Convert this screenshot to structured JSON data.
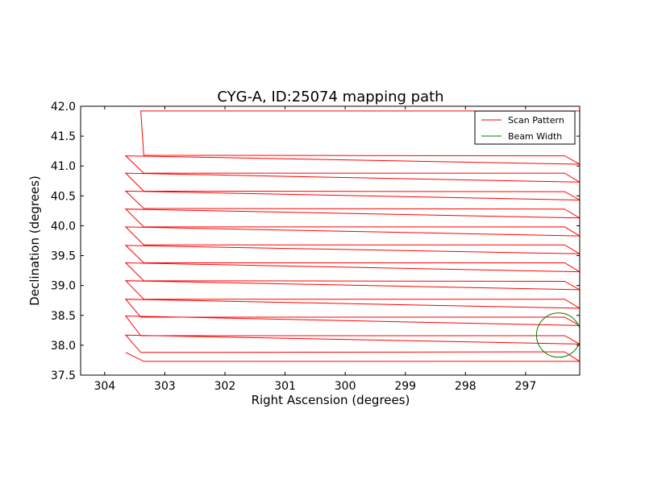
{
  "chart_data": {
    "type": "line",
    "title": "CYG-A, ID:25074 mapping path",
    "xlabel": "Right Ascension (degrees)",
    "ylabel": "Declination (degrees)",
    "xlim": [
      304.4,
      296.1
    ],
    "ylim": [
      37.5,
      42.0
    ],
    "x_ticks": [
      304,
      303,
      302,
      301,
      300,
      299,
      298,
      297
    ],
    "x_tick_labels": [
      "304",
      "303",
      "302",
      "301",
      "300",
      "299",
      "298",
      "297"
    ],
    "y_ticks": [
      37.5,
      38.0,
      38.5,
      39.0,
      39.5,
      40.0,
      40.5,
      41.0,
      41.5,
      42.0
    ],
    "y_tick_labels": [
      "37.5",
      "38.0",
      "38.5",
      "39.0",
      "39.5",
      "40.0",
      "40.5",
      "41.0",
      "41.5",
      "42.0"
    ],
    "grid": false,
    "legend": {
      "position": "top-right",
      "entries": [
        {
          "label": "Scan Pattern",
          "color": "#ff0000"
        },
        {
          "label": "Beam Width",
          "color": "#008000"
        }
      ]
    },
    "series": [
      {
        "name": "Scan Pattern",
        "color": "#ff0000",
        "x": [
          303.65,
          303.35,
          296.1,
          296.35,
          303.4,
          303.65,
          296.1,
          296.35,
          303.4,
          303.65,
          296.1,
          296.35,
          303.4,
          303.65,
          296.1,
          296.35,
          303.35,
          303.65,
          296.1,
          296.35,
          303.35,
          303.65,
          296.1,
          296.35,
          303.35,
          303.65,
          296.1,
          296.35,
          303.35,
          303.65,
          296.1,
          296.35,
          303.35,
          303.65,
          296.1,
          296.35,
          303.35,
          303.65,
          296.1,
          296.35,
          303.35,
          303.65,
          296.1,
          296.35,
          303.35,
          303.65,
          296.1,
          296.35,
          303.35,
          303.4,
          296.1
        ],
        "y": [
          37.88,
          37.73,
          37.73,
          37.89,
          37.88,
          38.17,
          38.02,
          38.16,
          38.16,
          38.49,
          38.33,
          38.47,
          38.47,
          38.77,
          38.62,
          38.77,
          38.77,
          39.08,
          38.93,
          39.07,
          39.08,
          39.38,
          39.23,
          39.38,
          39.38,
          39.67,
          39.53,
          39.68,
          39.68,
          39.98,
          39.83,
          39.98,
          39.98,
          40.28,
          40.13,
          40.28,
          40.29,
          40.58,
          40.43,
          40.57,
          40.58,
          40.88,
          40.73,
          40.88,
          40.88,
          41.17,
          41.03,
          41.17,
          41.18,
          41.92,
          41.92
        ]
      },
      {
        "name": "Beam Width",
        "color": "#008000",
        "center": [
          296.45,
          38.17
        ],
        "radius_deg": 0.37
      }
    ]
  }
}
